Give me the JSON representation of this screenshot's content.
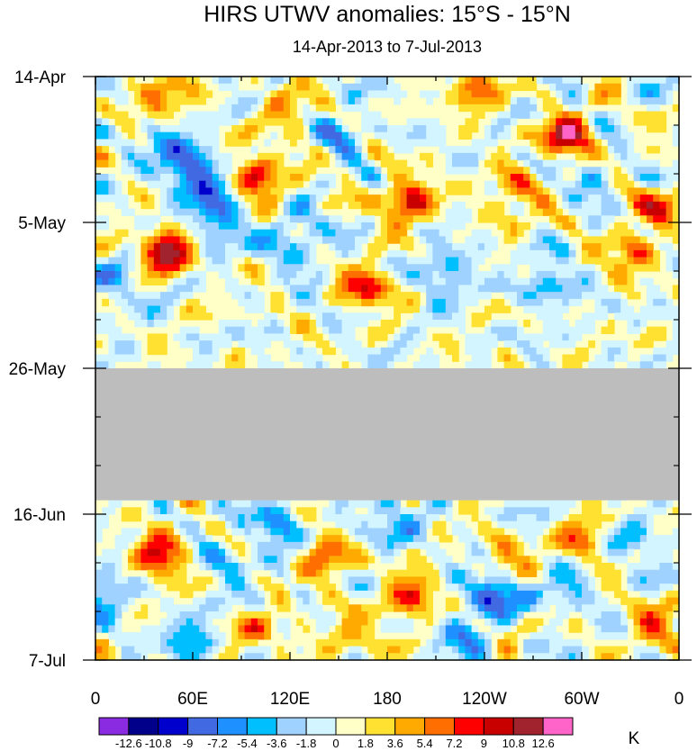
{
  "chart_data": {
    "type": "heatmap",
    "title": "HIRS UTWV anomalies: 15°S - 15°N",
    "subtitle": "14-Apr-2013 to 7-Jul-2013",
    "x_ticks": [
      {
        "label": "0",
        "lon": 0
      },
      {
        "label": "60E",
        "lon": 60
      },
      {
        "label": "120E",
        "lon": 120
      },
      {
        "label": "180",
        "lon": 180
      },
      {
        "label": "120W",
        "lon": 240
      },
      {
        "label": "60W",
        "lon": 300
      },
      {
        "label": "0",
        "lon": 360
      }
    ],
    "x_range": [
      0,
      360
    ],
    "y_ticks": [
      {
        "label": "14-Apr",
        "day": 0
      },
      {
        "label": "5-May",
        "day": 21
      },
      {
        "label": "26-May",
        "day": 42
      },
      {
        "label": "16-Jun",
        "day": 63
      },
      {
        "label": "7-Jul",
        "day": 84
      }
    ],
    "y_range": [
      0,
      84
    ],
    "missing_data_days": [
      42,
      61
    ],
    "missing_color": "#bdbdbd",
    "colorbar": {
      "units": "K",
      "levels": [
        "-12.6",
        "-10.8",
        "-9",
        "-7.2",
        "-5.4",
        "-3.6",
        "-1.8",
        "0",
        "1.8",
        "3.6",
        "5.4",
        "7.2",
        "9",
        "10.8",
        "12.6"
      ],
      "colors": [
        "#8a2be2",
        "#00008b",
        "#0000cd",
        "#4169e1",
        "#1e90ff",
        "#00bfff",
        "#a0d2ff",
        "#d2f5ff",
        "#ffffc8",
        "#ffe132",
        "#ffaa00",
        "#ff6e00",
        "#ff0000",
        "#c80000",
        "#a0232d",
        "#ff64c8"
      ]
    },
    "features": [
      {
        "lon": 45,
        "day": 25,
        "value": 11.5
      },
      {
        "lon": 193,
        "day": 18,
        "value": 9.5
      },
      {
        "lon": 292,
        "day": 9,
        "value": 11
      },
      {
        "lon": 100,
        "day": 14,
        "value": 9
      },
      {
        "lon": 168,
        "day": 30,
        "value": 8
      },
      {
        "lon": 345,
        "day": 19,
        "value": 7
      },
      {
        "lon": 258,
        "day": 17,
        "value": 6
      },
      {
        "lon": 330,
        "day": 26,
        "value": 5.5
      },
      {
        "lon": 40,
        "day": 3,
        "value": 6
      },
      {
        "lon": 235,
        "day": 2,
        "value": 6
      },
      {
        "lon": 120,
        "day": 5,
        "value": 5
      },
      {
        "lon": 65,
        "day": 15,
        "value": -8.5
      },
      {
        "lon": 48,
        "day": 11,
        "value": -7
      },
      {
        "lon": 75,
        "day": 21,
        "value": -7.5
      },
      {
        "lon": 125,
        "day": 24,
        "value": -6
      },
      {
        "lon": 150,
        "day": 8,
        "value": -5
      },
      {
        "lon": 215,
        "day": 28,
        "value": -5.5
      },
      {
        "lon": 280,
        "day": 30,
        "value": -5
      },
      {
        "lon": 305,
        "day": 14,
        "value": -4.5
      },
      {
        "lon": 12,
        "day": 30,
        "value": -4
      },
      {
        "lon": 40,
        "day": 69,
        "value": 9.5
      },
      {
        "lon": 195,
        "day": 75,
        "value": 8
      },
      {
        "lon": 140,
        "day": 69,
        "value": 7
      },
      {
        "lon": 250,
        "day": 70,
        "value": 5.5
      },
      {
        "lon": 300,
        "day": 67,
        "value": 5.5
      },
      {
        "lon": 345,
        "day": 79,
        "value": 6
      },
      {
        "lon": 100,
        "day": 80,
        "value": 5
      },
      {
        "lon": 155,
        "day": 80,
        "value": 4.5
      },
      {
        "lon": 245,
        "day": 74,
        "value": -10
      },
      {
        "lon": 115,
        "day": 65,
        "value": -6
      },
      {
        "lon": 5,
        "day": 75,
        "value": -5.5
      },
      {
        "lon": 60,
        "day": 81,
        "value": -5
      },
      {
        "lon": 185,
        "day": 64,
        "value": -5
      },
      {
        "lon": 225,
        "day": 80,
        "value": -4.5
      },
      {
        "lon": 290,
        "day": 74,
        "value": -4
      },
      {
        "lon": 80,
        "day": 70,
        "value": -4
      },
      {
        "lon": 335,
        "day": 67,
        "value": -4
      }
    ]
  }
}
